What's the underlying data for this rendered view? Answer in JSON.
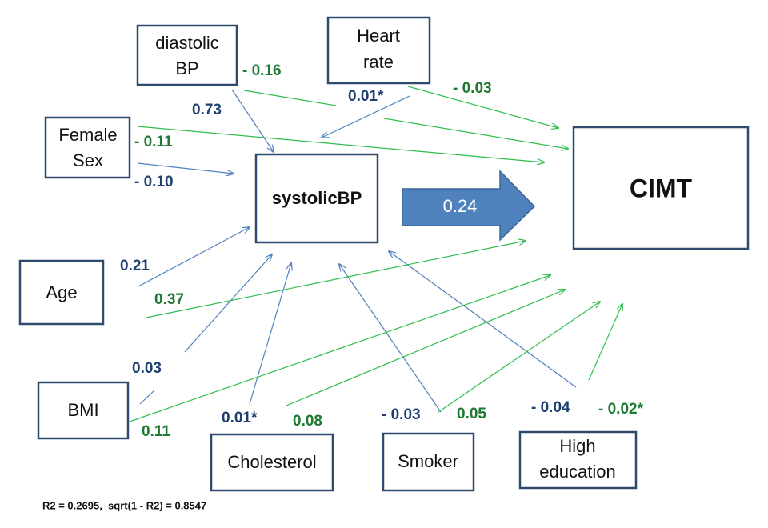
{
  "nodes": [
    {
      "id": "diastolic",
      "label": [
        "diastolic",
        "BP"
      ]
    },
    {
      "id": "heart",
      "label": [
        "Heart",
        "rate"
      ]
    },
    {
      "id": "female",
      "label": [
        "Female",
        "Sex"
      ]
    },
    {
      "id": "systolic",
      "label": [
        "systolicBP"
      ]
    },
    {
      "id": "cimt",
      "label": [
        "CIMT"
      ]
    },
    {
      "id": "age",
      "label": [
        "Age"
      ]
    },
    {
      "id": "bmi",
      "label": [
        "BMI"
      ]
    },
    {
      "id": "chol",
      "label": [
        "Cholesterol"
      ]
    },
    {
      "id": "smoker",
      "label": [
        "Smoker"
      ]
    },
    {
      "id": "edu",
      "label": [
        "High",
        "education"
      ]
    }
  ],
  "main_effect": "0.24",
  "edges": [
    {
      "from": "diastolic",
      "to": "cimt",
      "label": "- 0.16"
    },
    {
      "from": "diastolic",
      "to": "systolic",
      "label": "0.73"
    },
    {
      "from": "heart",
      "to": "systolic",
      "label": "0.01*"
    },
    {
      "from": "heart",
      "to": "cimt",
      "label": "- 0.03"
    },
    {
      "from": "female",
      "to": "cimt",
      "label": "- 0.11"
    },
    {
      "from": "female",
      "to": "systolic",
      "label": "- 0.10"
    },
    {
      "from": "age",
      "to": "systolic",
      "label": "0.21"
    },
    {
      "from": "age",
      "to": "cimt",
      "label": "0.37"
    },
    {
      "from": "bmi",
      "to": "systolic",
      "label": "0.03"
    },
    {
      "from": "bmi",
      "to": "cimt",
      "label": "0.11"
    },
    {
      "from": "chol",
      "to": "systolic",
      "label": "0.01*"
    },
    {
      "from": "chol",
      "to": "cimt",
      "label": "0.08"
    },
    {
      "from": "smoker",
      "to": "systolic",
      "label": "- 0.03"
    },
    {
      "from": "smoker",
      "to": "cimt",
      "label": "0.05"
    },
    {
      "from": "edu",
      "to": "systolic",
      "label": "- 0.04"
    },
    {
      "from": "edu",
      "to": "cimt",
      "label": "- 0.02*"
    }
  ],
  "footnote": "R2 = 0.2695,  sqrt(1 - R2) = 0.8547"
}
